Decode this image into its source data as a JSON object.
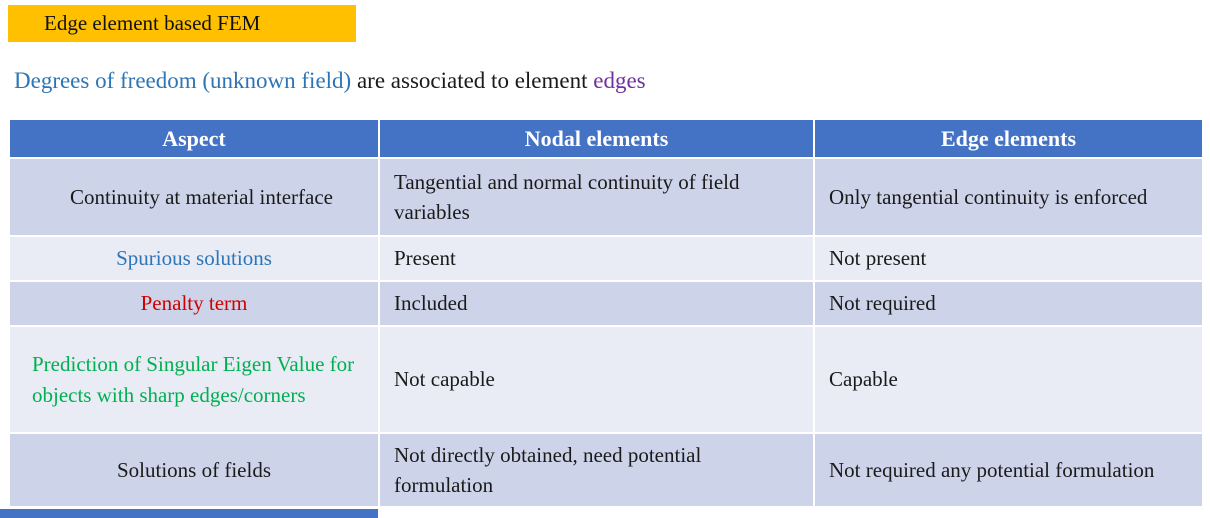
{
  "slide": {
    "title": "Edge element based FEM",
    "title_bg": "#FFC000",
    "accent_bar_color": "#4472C4"
  },
  "subtitle": {
    "blue_text": "Degrees of freedom (unknown field)",
    "black_text": " are associated to element ",
    "purple_text": "edges",
    "blue_color": "#2E75B6",
    "purple_color": "#7030A0"
  },
  "table": {
    "header_bg": "#4472C4",
    "header_text_color": "#FFFFFF",
    "band_dark": "#CDD4EA",
    "band_light": "#E9EBF5",
    "headers": [
      "Aspect",
      "Nodal elements",
      "Edge elements"
    ],
    "rows": [
      {
        "aspect": "Continuity at material interface",
        "aspect_color": "#1a1a1a",
        "band": "dark",
        "nodal": "Tangential and normal continuity of field variables",
        "edge": "Only tangential continuity is enforced"
      },
      {
        "aspect": "Spurious solutions",
        "aspect_color": "#2E75B6",
        "band": "light",
        "nodal": "Present",
        "edge": "Not present"
      },
      {
        "aspect": "Penalty term",
        "aspect_color": "#D00000",
        "band": "dark",
        "nodal": "Included",
        "edge": "Not required"
      },
      {
        "aspect": "Prediction of Singular Eigen Value for objects with sharp edges/corners",
        "aspect_color": "#00B050",
        "band": "light",
        "nodal": "Not  capable",
        "edge": "Capable"
      },
      {
        "aspect": "Solutions of fields",
        "aspect_color": "#1a1a1a",
        "band": "dark",
        "nodal": "Not directly obtained, need potential formulation",
        "edge": "Not required any potential formulation"
      }
    ]
  }
}
